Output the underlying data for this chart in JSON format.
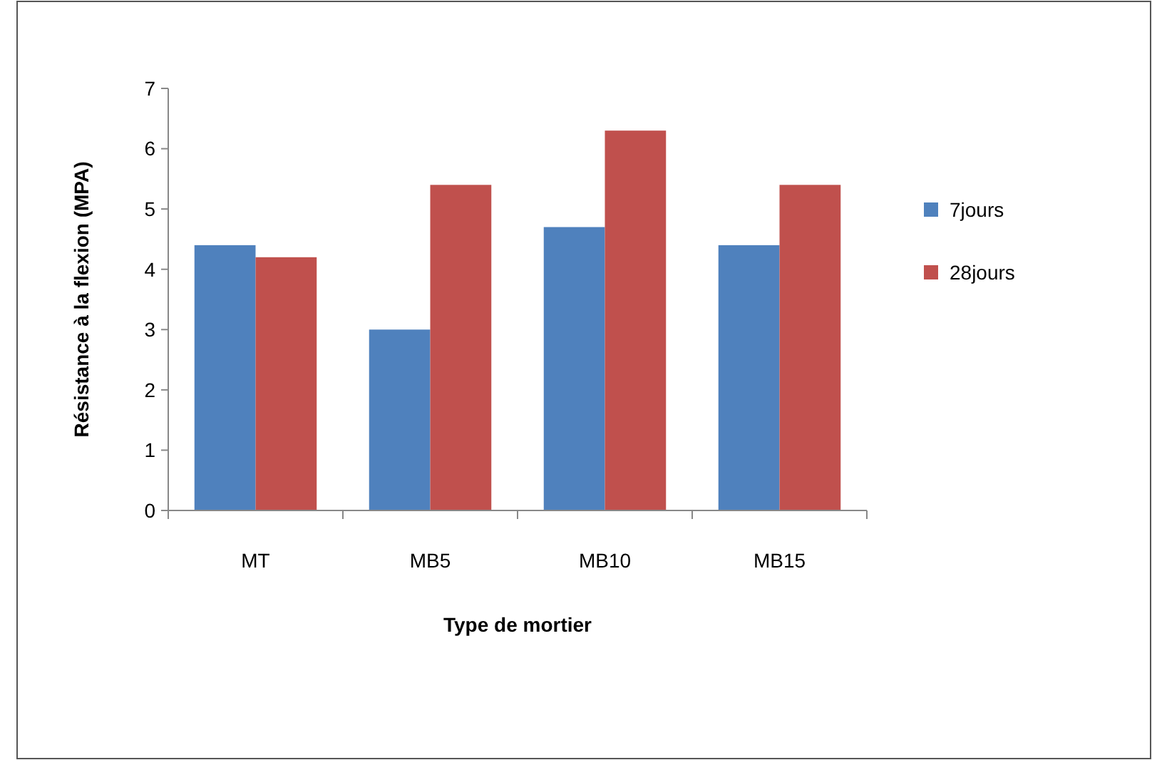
{
  "chart_data": {
    "type": "bar",
    "xlabel": "Type de mortier",
    "ylabel": "Résistance à la flexion (MPA)",
    "categories": [
      "MT",
      "MB5",
      "MB10",
      "MB15"
    ],
    "series": [
      {
        "name": "7jours",
        "color": "#4f81bd",
        "values": [
          4.4,
          3.0,
          4.7,
          4.4
        ]
      },
      {
        "name": "28jours",
        "color": "#c0504d",
        "values": [
          4.2,
          5.4,
          6.3,
          5.4
        ]
      }
    ],
    "ylim": [
      0,
      7
    ],
    "yticks": [
      0,
      1,
      2,
      3,
      4,
      5,
      6,
      7
    ],
    "grid": false,
    "legend": "right"
  }
}
